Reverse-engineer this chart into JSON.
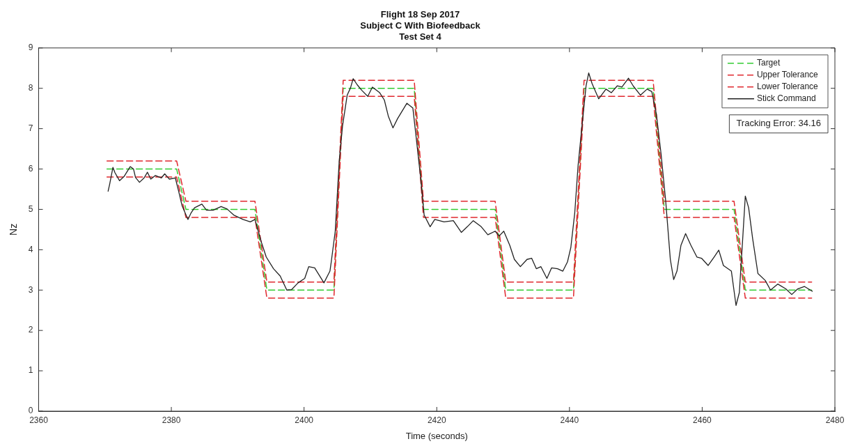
{
  "chart_data": {
    "type": "line",
    "title": "Flight 18 Sep 2017\nSubject C With Biofeedback\nTest Set 4",
    "xlabel": "Time (seconds)",
    "ylabel": "Nz",
    "xlim": [
      2360,
      2480
    ],
    "xticks": [
      2360,
      2380,
      2400,
      2420,
      2440,
      2460,
      2480
    ],
    "ylim": [
      0,
      9
    ],
    "yticks": [
      0,
      1,
      2,
      3,
      4,
      5,
      6,
      7,
      8,
      9
    ],
    "grid": false,
    "legend": "top right",
    "marker": "none",
    "annotations": [
      "Tracking Error: 34.16"
    ],
    "series": [
      {
        "name": "Target",
        "color": "#33cc33",
        "line_style": "dashed",
        "x": [
          2370.3,
          2380.8,
          2382.2,
          2392.6,
          2394.4,
          2404.5,
          2405.9,
          2416.6,
          2418.0,
          2428.8,
          2430.4,
          2440.6,
          2442.2,
          2452.6,
          2454.3,
          2464.8,
          2466.5,
          2476.5
        ],
        "values": [
          6,
          6,
          5,
          5,
          3,
          3,
          8,
          8,
          5,
          5,
          3,
          3,
          8,
          8,
          5,
          5,
          3,
          3
        ]
      },
      {
        "name": "Upper Tolerance",
        "color": "#e0282e",
        "line_style": "dashed",
        "x": [
          2370.3,
          2380.8,
          2382.2,
          2392.6,
          2394.4,
          2404.5,
          2405.9,
          2416.6,
          2418.0,
          2428.8,
          2430.4,
          2440.6,
          2442.2,
          2452.6,
          2454.3,
          2464.8,
          2466.5,
          2476.5
        ],
        "values": [
          6.2,
          6.2,
          5.2,
          5.2,
          3.2,
          3.2,
          8.2,
          8.2,
          5.2,
          5.2,
          3.2,
          3.2,
          8.2,
          8.2,
          5.2,
          5.2,
          3.2,
          3.2
        ]
      },
      {
        "name": "Lower Tolerance",
        "color": "#e0282e",
        "line_style": "dashed",
        "x": [
          2370.3,
          2380.8,
          2382.2,
          2392.6,
          2394.4,
          2404.5,
          2405.9,
          2416.6,
          2418.0,
          2428.8,
          2430.4,
          2440.6,
          2442.2,
          2452.6,
          2454.3,
          2464.8,
          2466.5,
          2476.5
        ],
        "values": [
          5.8,
          5.8,
          4.8,
          4.8,
          2.8,
          2.8,
          7.8,
          7.8,
          4.8,
          4.8,
          2.8,
          2.8,
          7.8,
          7.8,
          4.8,
          4.8,
          2.8,
          2.8
        ]
      },
      {
        "name": "Stick Command",
        "color": "#222222",
        "line_style": "solid",
        "x": [
          2370.47,
          2370.7,
          2371.2,
          2371.5,
          2372.2,
          2372.9,
          2373.8,
          2374.3,
          2374.6,
          2375.2,
          2375.9,
          2376.4,
          2376.9,
          2377.6,
          2378.5,
          2379.0,
          2379.7,
          2380.6,
          2381.1,
          2381.6,
          2382.5,
          2383.0,
          2383.5,
          2384.6,
          2385.3,
          2386.3,
          2387.5,
          2388.4,
          2389.4,
          2390.8,
          2391.9,
          2392.6,
          2393.6,
          2394.3,
          2395.4,
          2396.4,
          2397.4,
          2398.1,
          2399.1,
          2400.1,
          2400.7,
          2401.6,
          2403.0,
          2403.9,
          2404.1,
          2404.7,
          2405.3,
          2405.8,
          2406.5,
          2407.0,
          2407.4,
          2408.0,
          2408.7,
          2409.6,
          2410.3,
          2411.4,
          2412.1,
          2412.7,
          2413.4,
          2414.1,
          2415.5,
          2416.4,
          2416.9,
          2417.6,
          2418.1,
          2419.0,
          2419.7,
          2421.1,
          2422.5,
          2423.7,
          2424.6,
          2425.5,
          2426.7,
          2427.7,
          2428.8,
          2429.4,
          2430.1,
          2431.0,
          2431.7,
          2432.6,
          2433.6,
          2434.3,
          2435.0,
          2435.7,
          2436.6,
          2437.3,
          2438.2,
          2439.0,
          2439.7,
          2440.2,
          2440.8,
          2441.3,
          2442.0,
          2442.5,
          2442.9,
          2443.4,
          2444.4,
          2445.5,
          2446.3,
          2447.2,
          2447.9,
          2448.9,
          2449.6,
          2450.7,
          2451.7,
          2452.4,
          2453.1,
          2453.8,
          2454.5,
          2455.2,
          2455.7,
          2456.2,
          2456.8,
          2457.5,
          2458.3,
          2459.2,
          2459.9,
          2460.9,
          2461.8,
          2462.5,
          2463.2,
          2464.4,
          2465.1,
          2465.6,
          2466.0,
          2466.5,
          2467.0,
          2467.6,
          2468.4,
          2469.5,
          2470.3,
          2471.4,
          2472.6,
          2473.5,
          2474.4,
          2475.4,
          2476.6
        ],
        "values": [
          5.45,
          5.62,
          6.04,
          5.91,
          5.71,
          5.82,
          6.06,
          6.0,
          5.79,
          5.67,
          5.78,
          5.92,
          5.75,
          5.84,
          5.78,
          5.88,
          5.75,
          5.78,
          5.45,
          5.1,
          4.75,
          4.92,
          5.04,
          5.13,
          4.98,
          4.98,
          5.07,
          5.01,
          4.86,
          4.75,
          4.69,
          4.75,
          4.17,
          3.82,
          3.53,
          3.35,
          3.0,
          3.01,
          3.18,
          3.29,
          3.58,
          3.55,
          3.18,
          3.47,
          3.7,
          4.46,
          6.2,
          7.07,
          7.83,
          8.01,
          8.24,
          8.09,
          7.95,
          7.8,
          8.03,
          7.89,
          7.71,
          7.31,
          7.02,
          7.25,
          7.63,
          7.51,
          6.78,
          5.74,
          4.86,
          4.57,
          4.75,
          4.69,
          4.72,
          4.43,
          4.57,
          4.72,
          4.57,
          4.37,
          4.46,
          4.34,
          4.46,
          4.11,
          3.76,
          3.58,
          3.76,
          3.79,
          3.53,
          3.58,
          3.29,
          3.55,
          3.53,
          3.47,
          3.7,
          4.05,
          4.92,
          6.09,
          7.25,
          8.06,
          8.38,
          8.12,
          7.74,
          7.98,
          7.89,
          8.06,
          8.03,
          8.25,
          8.06,
          7.83,
          7.98,
          7.92,
          7.36,
          6.38,
          5.21,
          3.76,
          3.26,
          3.47,
          4.11,
          4.4,
          4.11,
          3.82,
          3.79,
          3.61,
          3.82,
          3.99,
          3.61,
          3.47,
          2.62,
          2.94,
          3.99,
          5.33,
          5.04,
          4.28,
          3.41,
          3.24,
          3.0,
          3.15,
          3.03,
          2.89,
          3.03,
          3.09,
          2.97
        ]
      }
    ]
  }
}
